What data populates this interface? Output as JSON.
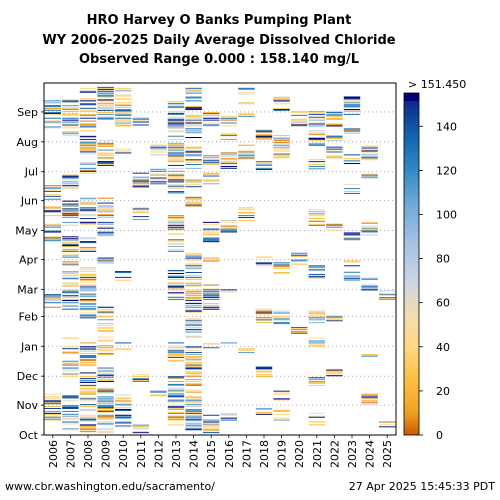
{
  "chart_data": {
    "type": "heatmap",
    "title_lines": [
      "HRO Harvey O Banks Pumping Plant",
      "WY 2006-2025 Daily Average Dissolved Chloride",
      "Observed Range 0.000 : 158.140 mg/L"
    ],
    "x_categories": [
      "2006",
      "2007",
      "2008",
      "2009",
      "2010",
      "2011",
      "2012",
      "2013",
      "2014",
      "2015",
      "2016",
      "2017",
      "2018",
      "2019",
      "2020",
      "2021",
      "2022",
      "2023",
      "2024",
      "2025"
    ],
    "y_months": [
      "Oct",
      "Nov",
      "Dec",
      "Jan",
      "Feb",
      "Mar",
      "Apr",
      "May",
      "Jun",
      "Jul",
      "Aug",
      "Sep"
    ],
    "colorbar": {
      "min": 0,
      "max": 151.45,
      "ticks": [
        "0",
        "20",
        "40",
        "60",
        "80",
        "100",
        "120",
        "140"
      ],
      "tick_values": [
        0,
        20,
        40,
        60,
        80,
        100,
        120,
        140
      ],
      "over_label": "> 151.450",
      "stops": [
        {
          "v": 0,
          "c": "#c85a00"
        },
        {
          "v": 10,
          "c": "#f0a020"
        },
        {
          "v": 25,
          "c": "#fcc040"
        },
        {
          "v": 40,
          "c": "#ffd882"
        },
        {
          "v": 55,
          "c": "#f2dcb0"
        },
        {
          "v": 68,
          "c": "#d2d6e2"
        },
        {
          "v": 85,
          "c": "#a8c4e4"
        },
        {
          "v": 105,
          "c": "#6fa8d8"
        },
        {
          "v": 122,
          "c": "#2a86c0"
        },
        {
          "v": 135,
          "c": "#1565b0"
        },
        {
          "v": 151.45,
          "c": "#0a2a8a"
        }
      ],
      "over_color": "#00007a"
    },
    "grid": "dotted horizontal at month boundaries",
    "footer_left": "www.cbr.washington.edu/sacramento/",
    "footer_right": "27 Apr 2025 15:45:33 PDT",
    "observations": [
      {
        "year": "2006",
        "segments": [
          [
            15,
            43
          ],
          [
            131,
            145
          ],
          [
            200,
            218
          ],
          [
            225,
            238
          ],
          [
            243,
            258
          ],
          [
            318,
            346
          ]
        ]
      },
      {
        "year": "2007",
        "segments": [
          [
            5,
            40
          ],
          [
            60,
            100
          ],
          [
            130,
            205
          ],
          [
            212,
            242
          ],
          [
            255,
            272
          ],
          [
            310,
            348
          ]
        ]
      },
      {
        "year": "2008",
        "segments": [
          [
            3,
            95
          ],
          [
            120,
            175
          ],
          [
            190,
            205
          ],
          [
            215,
            245
          ],
          [
            265,
            283
          ],
          [
            290,
            348
          ],
          [
            355,
            360
          ]
        ]
      },
      {
        "year": "2009",
        "segments": [
          [
            2,
            72
          ],
          [
            80,
            135
          ],
          [
            175,
            185
          ],
          [
            205,
            245
          ],
          [
            275,
            305
          ],
          [
            325,
            360
          ]
        ]
      },
      {
        "year": "2010",
        "segments": [
          [
            8,
            42
          ],
          [
            88,
            95
          ],
          [
            160,
            170
          ],
          [
            290,
            296
          ],
          [
            320,
            360
          ]
        ]
      },
      {
        "year": "2011",
        "segments": [
          [
            2,
            10
          ],
          [
            55,
            62
          ],
          [
            220,
            235
          ],
          [
            255,
            273
          ],
          [
            320,
            330
          ]
        ]
      },
      {
        "year": "2012",
        "segments": [
          [
            40,
            45
          ],
          [
            260,
            275
          ],
          [
            290,
            300
          ]
        ]
      },
      {
        "year": "2013",
        "segments": [
          [
            10,
            60
          ],
          [
            75,
            95
          ],
          [
            140,
            170
          ],
          [
            190,
            230
          ],
          [
            250,
            345
          ]
        ]
      },
      {
        "year": "2014",
        "segments": [
          [
            5,
            92
          ],
          [
            100,
            188
          ],
          [
            237,
            246
          ],
          [
            254,
            264
          ],
          [
            270,
            298
          ],
          [
            308,
            340
          ],
          [
            346,
            360
          ]
        ]
      },
      {
        "year": "2015",
        "segments": [
          [
            2,
            20
          ],
          [
            90,
            96
          ],
          [
            130,
            156
          ],
          [
            178,
            183
          ],
          [
            200,
            220
          ],
          [
            260,
            272
          ],
          [
            280,
            290
          ],
          [
            320,
            335
          ]
        ]
      },
      {
        "year": "2016",
        "segments": [
          [
            15,
            22
          ],
          [
            95,
            98
          ],
          [
            148,
            152
          ],
          [
            210,
            222
          ],
          [
            275,
            292
          ],
          [
            305,
            315
          ],
          [
            320,
            330
          ]
        ]
      },
      {
        "year": "2017",
        "segments": [
          [
            85,
            92
          ],
          [
            220,
            235
          ],
          [
            285,
            300
          ],
          [
            330,
            345
          ],
          [
            353,
            360
          ]
        ]
      },
      {
        "year": "2018",
        "segments": [
          [
            20,
            30
          ],
          [
            60,
            70
          ],
          [
            116,
            130
          ],
          [
            175,
            185
          ],
          [
            275,
            283
          ],
          [
            305,
            316
          ]
        ]
      },
      {
        "year": "2019",
        "segments": [
          [
            15,
            25
          ],
          [
            35,
            45
          ],
          [
            115,
            130
          ],
          [
            165,
            180
          ],
          [
            285,
            310
          ],
          [
            335,
            350
          ]
        ]
      },
      {
        "year": "2020",
        "segments": [
          [
            105,
            112
          ],
          [
            175,
            190
          ],
          [
            280,
            285
          ],
          [
            320,
            335
          ]
        ]
      },
      {
        "year": "2021",
        "segments": [
          [
            10,
            22
          ],
          [
            50,
            60
          ],
          [
            90,
            100
          ],
          [
            115,
            130
          ],
          [
            160,
            175
          ],
          [
            215,
            235
          ],
          [
            275,
            285
          ],
          [
            300,
            315
          ],
          [
            320,
            335
          ]
        ]
      },
      {
        "year": "2022",
        "segments": [
          [
            60,
            70
          ],
          [
            118,
            123
          ],
          [
            212,
            218
          ],
          [
            287,
            298
          ],
          [
            303,
            310
          ],
          [
            320,
            335
          ]
        ]
      },
      {
        "year": "2023",
        "segments": [
          [
            160,
            180
          ],
          [
            200,
            210
          ],
          [
            250,
            260
          ],
          [
            280,
            290
          ],
          [
            310,
            318
          ],
          [
            330,
            350
          ]
        ]
      },
      {
        "year": "2024",
        "segments": [
          [
            30,
            42
          ],
          [
            80,
            85
          ],
          [
            150,
            165
          ],
          [
            205,
            220
          ],
          [
            265,
            270
          ],
          [
            285,
            300
          ]
        ]
      },
      {
        "year": "2025",
        "segments": [
          [
            8,
            15
          ],
          [
            140,
            150
          ]
        ]
      }
    ]
  }
}
